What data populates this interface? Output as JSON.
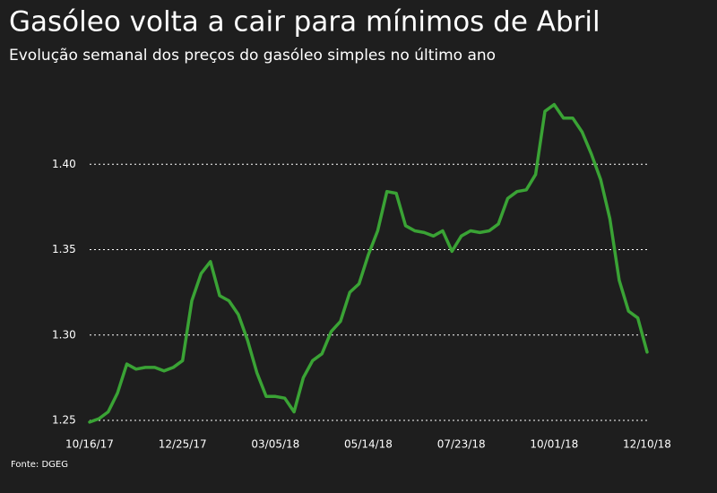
{
  "chart_data": {
    "type": "line",
    "title": "Gasóleo volta a cair para mínimos de Abril",
    "subtitle": "Evolução semanal dos preços do gasóleo simples no último ano",
    "source": "Fonte: DGEG",
    "color": "#3aa335",
    "grid": true,
    "categories": [
      "10/16/17",
      null,
      null,
      null,
      null,
      null,
      null,
      null,
      null,
      null,
      "12/25/17",
      null,
      null,
      null,
      null,
      null,
      null,
      null,
      null,
      null,
      "03/05/18",
      null,
      null,
      null,
      null,
      null,
      null,
      null,
      null,
      null,
      "05/14/18",
      null,
      null,
      null,
      null,
      null,
      null,
      null,
      null,
      null,
      "07/23/18",
      null,
      null,
      null,
      null,
      null,
      null,
      null,
      null,
      null,
      "10/01/18",
      null,
      null,
      null,
      null,
      null,
      null,
      null,
      null,
      null,
      "12/10/18"
    ],
    "values": [
      1.249,
      1.251,
      1.255,
      1.266,
      1.283,
      1.28,
      1.281,
      1.281,
      1.279,
      1.281,
      1.285,
      1.32,
      1.336,
      1.343,
      1.323,
      1.32,
      1.312,
      1.297,
      1.278,
      1.264,
      1.264,
      1.263,
      1.255,
      1.275,
      1.285,
      1.289,
      1.302,
      1.308,
      1.325,
      1.33,
      1.347,
      1.361,
      1.384,
      1.383,
      1.364,
      1.361,
      1.36,
      1.358,
      1.361,
      1.349,
      1.358,
      1.361,
      1.36,
      1.361,
      1.365,
      1.38,
      1.384,
      1.385,
      1.394,
      1.431,
      1.435,
      1.427,
      1.427,
      1.419,
      1.406,
      1.391,
      1.368,
      1.332,
      1.314,
      1.31,
      1.29
    ],
    "ylim": [
      1.25,
      1.45
    ],
    "yticks": [
      1.25,
      {
        "value": 1.3,
        "label": "1.30"
      },
      1.35,
      {
        "value": 1.4,
        "label": "1.40"
      }
    ]
  }
}
